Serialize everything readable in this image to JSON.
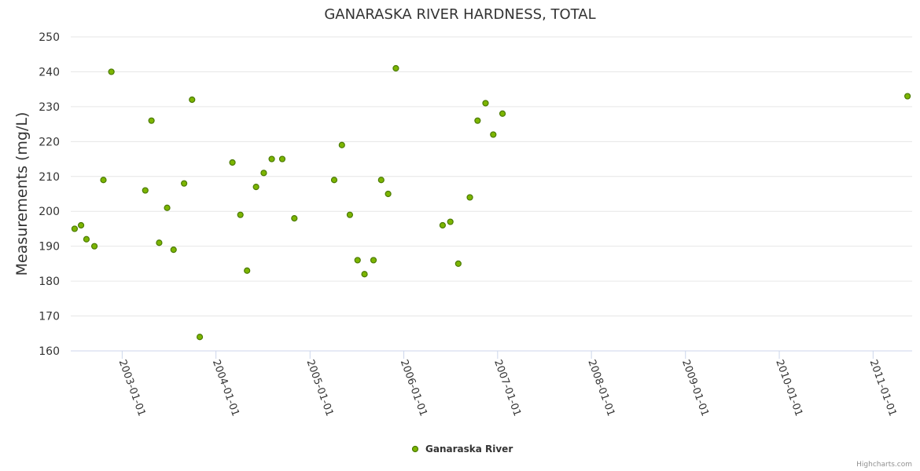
{
  "chart_data": {
    "type": "scatter",
    "title": "GANARASKA RIVER HARDNESS, TOTAL",
    "xlabel": "",
    "ylabel": "Measurements (mg/L)",
    "ylim": [
      160,
      250
    ],
    "yticks": [
      "160",
      "170",
      "180",
      "190",
      "200",
      "210",
      "220",
      "230",
      "240",
      "250"
    ],
    "xlim": [
      "2002-06-15",
      "2011-06-02"
    ],
    "xticks": [
      "2003-01-01",
      "2004-01-01",
      "2005-01-01",
      "2006-01-01",
      "2007-01-01",
      "2008-01-01",
      "2009-01-01",
      "2010-01-01",
      "2011-01-01"
    ],
    "grid": "horizontal",
    "legend_position": "bottom-center",
    "series": [
      {
        "name": "Ganaraska River",
        "color": "#7cb500",
        "marker_edge": "#4a7a00",
        "points": [
          {
            "x": "2002-06-30",
            "y": 195
          },
          {
            "x": "2002-07-25",
            "y": 196
          },
          {
            "x": "2002-08-15",
            "y": 192
          },
          {
            "x": "2002-09-15",
            "y": 190
          },
          {
            "x": "2002-10-20",
            "y": 209
          },
          {
            "x": "2002-11-20",
            "y": 240
          },
          {
            "x": "2003-04-01",
            "y": 206
          },
          {
            "x": "2003-04-25",
            "y": 226
          },
          {
            "x": "2003-05-25",
            "y": 191
          },
          {
            "x": "2003-06-25",
            "y": 201
          },
          {
            "x": "2003-07-20",
            "y": 189
          },
          {
            "x": "2003-08-30",
            "y": 208
          },
          {
            "x": "2003-09-30",
            "y": 232
          },
          {
            "x": "2003-10-30",
            "y": 164
          },
          {
            "x": "2004-03-05",
            "y": 214
          },
          {
            "x": "2004-04-05",
            "y": 199
          },
          {
            "x": "2004-05-01",
            "y": 183
          },
          {
            "x": "2004-06-05",
            "y": 207
          },
          {
            "x": "2004-07-05",
            "y": 211
          },
          {
            "x": "2004-08-05",
            "y": 215
          },
          {
            "x": "2004-09-15",
            "y": 215
          },
          {
            "x": "2004-11-01",
            "y": 198
          },
          {
            "x": "2005-04-05",
            "y": 209
          },
          {
            "x": "2005-05-05",
            "y": 219
          },
          {
            "x": "2005-06-05",
            "y": 199
          },
          {
            "x": "2005-07-05",
            "y": 186
          },
          {
            "x": "2005-08-01",
            "y": 182
          },
          {
            "x": "2005-09-05",
            "y": 186
          },
          {
            "x": "2005-10-05",
            "y": 209
          },
          {
            "x": "2005-11-01",
            "y": 205
          },
          {
            "x": "2005-12-01",
            "y": 241
          },
          {
            "x": "2006-06-01",
            "y": 196
          },
          {
            "x": "2006-07-01",
            "y": 197
          },
          {
            "x": "2006-08-01",
            "y": 185
          },
          {
            "x": "2006-09-15",
            "y": 204
          },
          {
            "x": "2006-10-15",
            "y": 226
          },
          {
            "x": "2006-11-15",
            "y": 231
          },
          {
            "x": "2006-12-15",
            "y": 222
          },
          {
            "x": "2007-01-20",
            "y": 228
          },
          {
            "x": "2011-05-15",
            "y": 233
          }
        ]
      }
    ]
  },
  "legend": {
    "label": "Ganaraska River"
  },
  "credits": "Highcharts.com"
}
